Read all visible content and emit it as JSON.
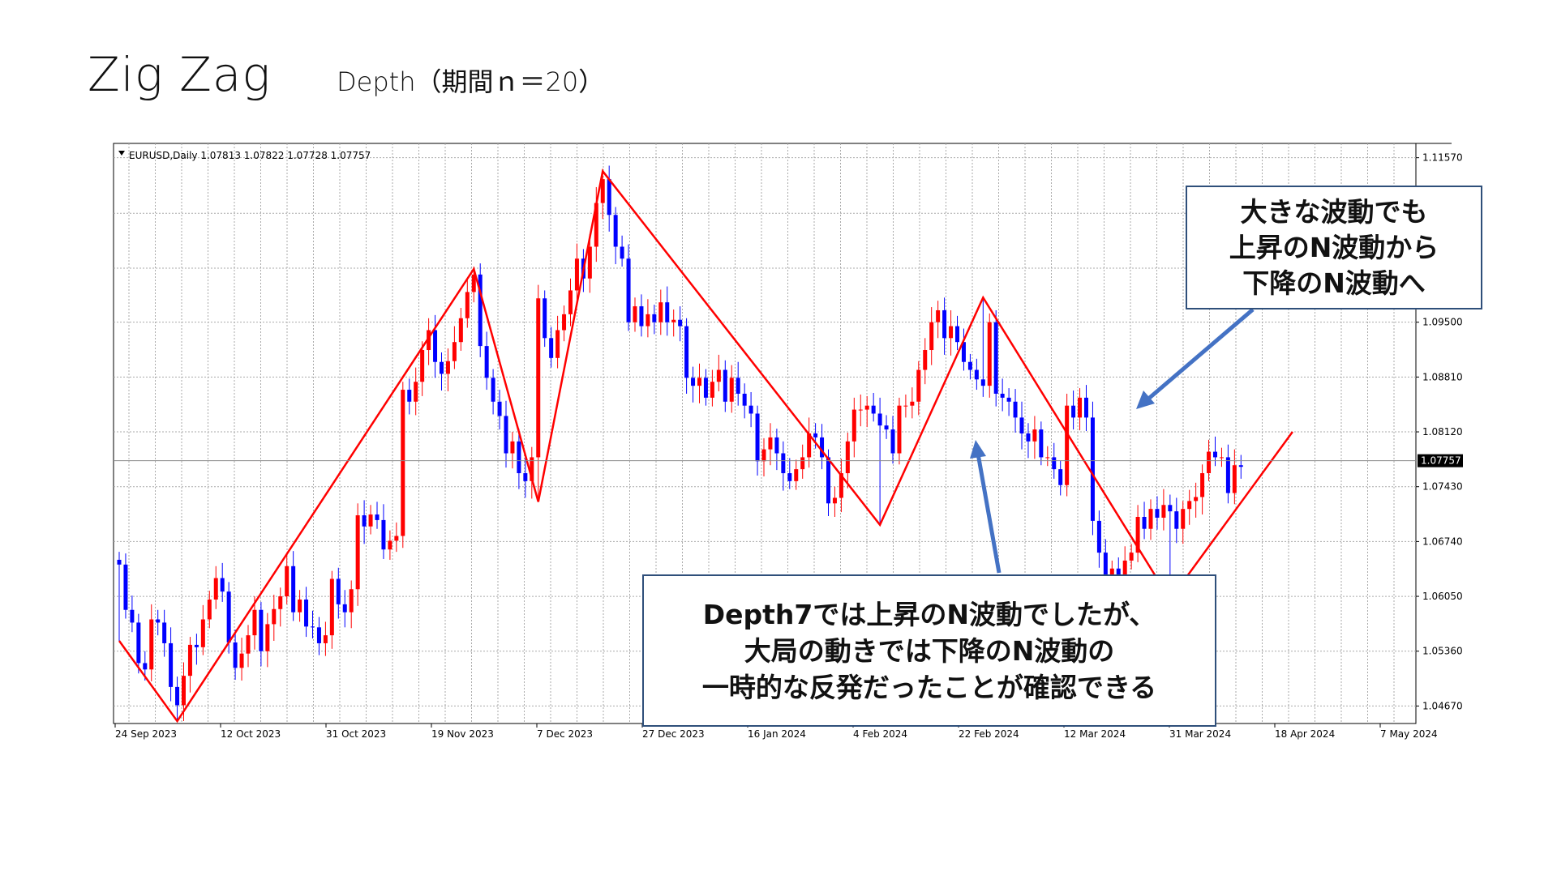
{
  "slide": {
    "title": "Zig Zag",
    "subtitle": "Depth（期間ｎ＝20）"
  },
  "chart_data": {
    "type": "candlestick",
    "symbol_header": "EURUSD,Daily  1.07813 1.07822 1.07728 1.07757",
    "current_price": "1.07757",
    "y_ticks": [
      1.1157,
      1.1087,
      1.1018,
      1.095,
      1.0881,
      1.0812,
      1.0743,
      1.0674,
      1.0605,
      1.0536,
      1.0467
    ],
    "y_tick_labels": [
      "1.11570",
      "1.10870",
      "1.10180",
      "1.09500",
      "1.08810",
      "1.08120",
      "1.07430",
      "1.06740",
      "1.06050",
      "1.05360",
      "1.04670"
    ],
    "x_tick_labels": [
      "24 Sep 2023",
      "12 Oct 2023",
      "31 Oct 2023",
      "19 Nov 2023",
      "7 Dec 2023",
      "27 Dec 2023",
      "16 Jan 2024",
      "4 Feb 2024",
      "22 Feb 2024",
      "12 Mar 2024",
      "31 Mar 2024",
      "18 Apr 2024",
      "7 May 2024"
    ],
    "ylim": [
      1.0445,
      1.1175
    ],
    "grid": true,
    "colors": {
      "up": "#ff0000",
      "down": "#0000ff",
      "zigzag": "#ff0000",
      "grid": "#aaaaaa",
      "arrow": "#4472c4"
    },
    "closes": [
      1.0645,
      1.0588,
      1.0572,
      1.0521,
      1.0513,
      1.0576,
      1.0572,
      1.0546,
      1.0491,
      1.0468,
      1.0505,
      1.0544,
      1.0541,
      1.0576,
      1.0601,
      1.0628,
      1.0611,
      1.0547,
      1.0515,
      1.0533,
      1.0556,
      1.0588,
      1.0536,
      1.057,
      1.0589,
      1.0605,
      1.0643,
      1.0585,
      1.0601,
      1.0567,
      1.0566,
      1.0546,
      1.0556,
      1.0627,
      1.0595,
      1.0585,
      1.0614,
      1.0707,
      1.0693,
      1.0708,
      1.0701,
      1.0664,
      1.0675,
      1.0681,
      1.0865,
      1.085,
      1.0875,
      1.0915,
      1.094,
      1.09,
      1.0885,
      1.0901,
      1.0925,
      1.0955,
      1.0988,
      1.101,
      1.092,
      1.088,
      1.085,
      1.0832,
      1.0785,
      1.08,
      1.076,
      1.075,
      1.078,
      1.098,
      1.093,
      1.0905,
      1.094,
      1.096,
      1.099,
      1.103,
      1.1005,
      1.1045,
      1.11,
      1.113,
      1.1085,
      1.1045,
      1.103,
      1.095,
      1.097,
      1.0945,
      1.096,
      1.095,
      1.0975,
      1.095,
      1.0953,
      1.0945,
      1.088,
      1.087,
      1.088,
      1.0855,
      1.0875,
      1.089,
      1.085,
      1.088,
      1.086,
      1.0845,
      1.0835,
      1.0775,
      1.079,
      1.0805,
      1.0785,
      1.076,
      1.075,
      1.0765,
      1.078,
      1.081,
      1.0805,
      1.078,
      1.0722,
      1.0729,
      1.076,
      1.08,
      1.084,
      1.084,
      1.0845,
      1.0835,
      1.082,
      1.0815,
      1.0785,
      1.0845,
      1.0845,
      1.085,
      1.089,
      1.0915,
      1.095,
      1.0965,
      1.093,
      1.0945,
      1.0925,
      1.09,
      1.089,
      1.0878,
      1.087,
      1.095,
      1.086,
      1.0855,
      1.085,
      1.083,
      1.081,
      1.08,
      1.0815,
      1.078,
      1.078,
      1.0765,
      1.0745,
      1.0845,
      1.083,
      1.0855,
      1.083,
      1.07,
      1.066,
      1.062,
      1.064,
      1.0623,
      1.065,
      1.066,
      1.0705,
      1.069,
      1.0715,
      1.0704,
      1.072,
      1.0712,
      1.069,
      1.0715,
      1.0725,
      1.073,
      1.076,
      1.0787,
      1.078,
      1.078,
      1.0735,
      1.077,
      1.0768
    ],
    "zigzag_points": [
      {
        "i": 0,
        "price": 1.0549
      },
      {
        "i": 9,
        "price": 1.0448
      },
      {
        "i": 55,
        "price": 1.1017
      },
      {
        "i": 65,
        "price": 1.0724
      },
      {
        "i": 75,
        "price": 1.114
      },
      {
        "i": 118,
        "price": 1.0695
      },
      {
        "i": 134,
        "price": 1.0981
      },
      {
        "i": 163,
        "price": 1.0601
      },
      {
        "i": 182,
        "price": 1.0812
      }
    ]
  },
  "callouts": {
    "top": {
      "line1": "大きな波動でも",
      "line2": "上昇のN波動から",
      "line3": "下降のN波動へ"
    },
    "bottom": {
      "line1": "Depth7では上昇のN波動でしたが、",
      "line2": "大局の動きでは下降のN波動の",
      "line3": "一時的な反発だったことが確認できる"
    }
  }
}
